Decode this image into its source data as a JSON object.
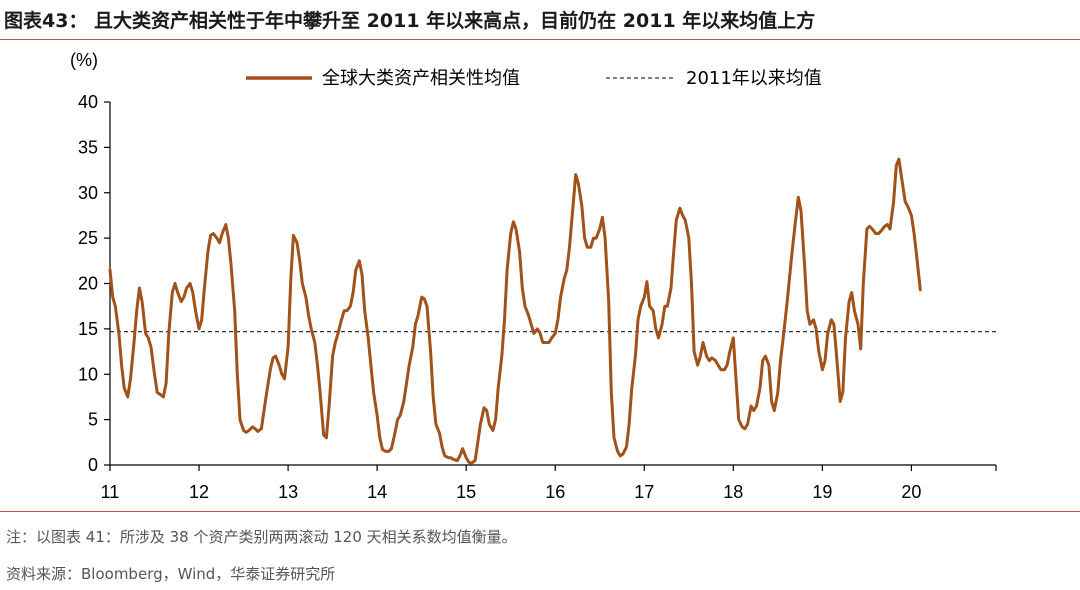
{
  "header": {
    "title": "图表43： 且大类资产相关性于年中攀升至 2011 年以来高点，目前仍在 2011 年以来均值上方"
  },
  "footer": {
    "note": "注：以图表 41：所涉及 38 个资产类别两两滚动 120 天相关系数均值衡量。",
    "source": "资料来源：Bloomberg，Wind，华泰证券研究所"
  },
  "colors": {
    "series_line": "#a0521a",
    "mean_line": "#333333",
    "rule": "#c0504d"
  },
  "chart_data": {
    "type": "line",
    "ylabel": "(%)",
    "ylim": [
      0,
      40
    ],
    "y_ticks": [
      0,
      5,
      10,
      15,
      20,
      25,
      30,
      35,
      40
    ],
    "xlim": [
      11,
      20.95
    ],
    "x_ticks": [
      11,
      12,
      13,
      14,
      15,
      16,
      17,
      18,
      19,
      20
    ],
    "x_tick_labels": [
      "11",
      "12",
      "13",
      "14",
      "15",
      "16",
      "17",
      "18",
      "19",
      "20"
    ],
    "grid": false,
    "legend_position": "top",
    "series": [
      {
        "name": "全球大类资产相关性均值",
        "style": "solid",
        "points": [
          [
            11.0,
            21.5
          ],
          [
            11.03,
            18.5
          ],
          [
            11.06,
            17.5
          ],
          [
            11.1,
            14.5
          ],
          [
            11.13,
            11.0
          ],
          [
            11.16,
            8.5
          ],
          [
            11.2,
            7.5
          ],
          [
            11.23,
            9.5
          ],
          [
            11.27,
            13.5
          ],
          [
            11.3,
            17.0
          ],
          [
            11.33,
            19.5
          ],
          [
            11.36,
            18.0
          ],
          [
            11.4,
            14.5
          ],
          [
            11.43,
            14.0
          ],
          [
            11.46,
            13.0
          ],
          [
            11.5,
            10.0
          ],
          [
            11.53,
            8.0
          ],
          [
            11.56,
            7.8
          ],
          [
            11.6,
            7.5
          ],
          [
            11.63,
            9.0
          ],
          [
            11.66,
            14.5
          ],
          [
            11.7,
            19.0
          ],
          [
            11.73,
            20.0
          ],
          [
            11.76,
            19.0
          ],
          [
            11.8,
            18.0
          ],
          [
            11.83,
            18.5
          ],
          [
            11.86,
            19.5
          ],
          [
            11.9,
            20.0
          ],
          [
            11.93,
            19.0
          ],
          [
            11.96,
            17.0
          ],
          [
            12.0,
            15.0
          ],
          [
            12.03,
            16.0
          ],
          [
            12.06,
            19.5
          ],
          [
            12.1,
            23.5
          ],
          [
            12.13,
            25.3
          ],
          [
            12.16,
            25.5
          ],
          [
            12.2,
            25.0
          ],
          [
            12.23,
            24.5
          ],
          [
            12.26,
            25.5
          ],
          [
            12.3,
            26.5
          ],
          [
            12.33,
            25.0
          ],
          [
            12.36,
            22.0
          ],
          [
            12.4,
            17.0
          ],
          [
            12.43,
            10.0
          ],
          [
            12.46,
            5.0
          ],
          [
            12.5,
            3.8
          ],
          [
            12.53,
            3.6
          ],
          [
            12.56,
            3.8
          ],
          [
            12.6,
            4.2
          ],
          [
            12.63,
            4.0
          ],
          [
            12.66,
            3.7
          ],
          [
            12.7,
            4.0
          ],
          [
            12.73,
            6.0
          ],
          [
            12.76,
            8.0
          ],
          [
            12.8,
            10.5
          ],
          [
            12.83,
            11.8
          ],
          [
            12.86,
            12.0
          ],
          [
            12.9,
            11.0
          ],
          [
            12.93,
            10.0
          ],
          [
            12.96,
            9.5
          ],
          [
            13.0,
            13.0
          ],
          [
            13.03,
            20.5
          ],
          [
            13.06,
            25.3
          ],
          [
            13.1,
            24.5
          ],
          [
            13.13,
            22.5
          ],
          [
            13.16,
            20.0
          ],
          [
            13.2,
            18.5
          ],
          [
            13.23,
            16.5
          ],
          [
            13.26,
            15.0
          ],
          [
            13.3,
            13.5
          ],
          [
            13.33,
            11.0
          ],
          [
            13.36,
            8.0
          ],
          [
            13.4,
            3.3
          ],
          [
            13.43,
            3.0
          ],
          [
            13.46,
            6.5
          ],
          [
            13.5,
            12.0
          ],
          [
            13.53,
            13.5
          ],
          [
            13.56,
            14.5
          ],
          [
            13.6,
            16.0
          ],
          [
            13.63,
            17.0
          ],
          [
            13.66,
            17.0
          ],
          [
            13.7,
            17.5
          ],
          [
            13.73,
            19.0
          ],
          [
            13.76,
            21.5
          ],
          [
            13.8,
            22.5
          ],
          [
            13.83,
            21.0
          ],
          [
            13.86,
            17.0
          ],
          [
            13.9,
            14.0
          ],
          [
            13.93,
            11.0
          ],
          [
            13.96,
            8.0
          ],
          [
            14.0,
            5.5
          ],
          [
            14.03,
            3.0
          ],
          [
            14.06,
            1.7
          ],
          [
            14.1,
            1.5
          ],
          [
            14.13,
            1.5
          ],
          [
            14.16,
            1.8
          ],
          [
            14.2,
            3.5
          ],
          [
            14.23,
            5.0
          ],
          [
            14.26,
            5.5
          ],
          [
            14.3,
            7.0
          ],
          [
            14.33,
            9.0
          ],
          [
            14.36,
            11.0
          ],
          [
            14.4,
            13.0
          ],
          [
            14.43,
            15.5
          ],
          [
            14.46,
            16.5
          ],
          [
            14.5,
            18.5
          ],
          [
            14.53,
            18.3
          ],
          [
            14.56,
            17.5
          ],
          [
            14.6,
            12.5
          ],
          [
            14.63,
            7.5
          ],
          [
            14.66,
            4.5
          ],
          [
            14.7,
            3.5
          ],
          [
            14.73,
            2.0
          ],
          [
            14.76,
            1.0
          ],
          [
            14.8,
            0.8
          ],
          [
            14.83,
            0.8
          ],
          [
            14.86,
            0.6
          ],
          [
            14.9,
            0.5
          ],
          [
            14.93,
            1.0
          ],
          [
            14.96,
            1.8
          ],
          [
            15.0,
            0.8
          ],
          [
            15.03,
            0.3
          ],
          [
            15.06,
            0.2
          ],
          [
            15.1,
            0.5
          ],
          [
            15.13,
            2.5
          ],
          [
            15.16,
            4.5
          ],
          [
            15.2,
            6.3
          ],
          [
            15.23,
            6.0
          ],
          [
            15.26,
            4.5
          ],
          [
            15.3,
            3.8
          ],
          [
            15.33,
            5.0
          ],
          [
            15.36,
            8.5
          ],
          [
            15.4,
            12.0
          ],
          [
            15.43,
            16.0
          ],
          [
            15.46,
            21.5
          ],
          [
            15.5,
            25.5
          ],
          [
            15.53,
            26.8
          ],
          [
            15.56,
            26.0
          ],
          [
            15.6,
            23.5
          ],
          [
            15.63,
            19.5
          ],
          [
            15.66,
            17.5
          ],
          [
            15.7,
            16.5
          ],
          [
            15.73,
            15.5
          ],
          [
            15.76,
            14.5
          ],
          [
            15.8,
            15.0
          ],
          [
            15.83,
            14.5
          ],
          [
            15.86,
            13.5
          ],
          [
            15.9,
            13.5
          ],
          [
            15.93,
            13.5
          ],
          [
            15.96,
            14.0
          ],
          [
            16.0,
            14.5
          ],
          [
            16.03,
            16.0
          ],
          [
            16.06,
            18.5
          ],
          [
            16.1,
            20.5
          ],
          [
            16.13,
            21.5
          ],
          [
            16.16,
            24.0
          ],
          [
            16.2,
            28.5
          ],
          [
            16.23,
            32.0
          ],
          [
            16.26,
            31.0
          ],
          [
            16.3,
            28.5
          ],
          [
            16.33,
            25.0
          ],
          [
            16.36,
            24.0
          ],
          [
            16.4,
            24.0
          ],
          [
            16.43,
            25.0
          ],
          [
            16.46,
            25.0
          ],
          [
            16.5,
            26.0
          ],
          [
            16.53,
            27.3
          ],
          [
            16.56,
            25.0
          ],
          [
            16.6,
            18.0
          ],
          [
            16.63,
            8.0
          ],
          [
            16.66,
            3.0
          ],
          [
            16.7,
            1.5
          ],
          [
            16.73,
            1.0
          ],
          [
            16.76,
            1.2
          ],
          [
            16.8,
            2.0
          ],
          [
            16.83,
            4.5
          ],
          [
            16.86,
            8.5
          ],
          [
            16.9,
            12.0
          ],
          [
            16.93,
            16.0
          ],
          [
            16.96,
            17.5
          ],
          [
            17.0,
            18.5
          ],
          [
            17.03,
            20.2
          ],
          [
            17.06,
            17.5
          ],
          [
            17.1,
            17.0
          ],
          [
            17.13,
            15.0
          ],
          [
            17.16,
            14.0
          ],
          [
            17.2,
            15.5
          ],
          [
            17.23,
            17.5
          ],
          [
            17.26,
            17.5
          ],
          [
            17.3,
            19.5
          ],
          [
            17.33,
            23.5
          ],
          [
            17.36,
            27.0
          ],
          [
            17.4,
            28.3
          ],
          [
            17.43,
            27.5
          ],
          [
            17.46,
            27.0
          ],
          [
            17.5,
            25.0
          ],
          [
            17.53,
            20.0
          ],
          [
            17.56,
            12.5
          ],
          [
            17.6,
            11.0
          ],
          [
            17.63,
            12.0
          ],
          [
            17.66,
            13.5
          ],
          [
            17.7,
            12.0
          ],
          [
            17.73,
            11.5
          ],
          [
            17.76,
            11.8
          ],
          [
            17.8,
            11.5
          ],
          [
            17.83,
            11.0
          ],
          [
            17.86,
            10.5
          ],
          [
            17.9,
            10.5
          ],
          [
            17.93,
            11.0
          ],
          [
            17.96,
            12.5
          ],
          [
            18.0,
            14.0
          ],
          [
            18.03,
            9.5
          ],
          [
            18.06,
            5.0
          ],
          [
            18.1,
            4.2
          ],
          [
            18.13,
            4.0
          ],
          [
            18.16,
            4.5
          ],
          [
            18.2,
            6.5
          ],
          [
            18.23,
            6.0
          ],
          [
            18.26,
            6.5
          ],
          [
            18.3,
            8.5
          ],
          [
            18.33,
            11.5
          ],
          [
            18.36,
            12.0
          ],
          [
            18.4,
            11.0
          ],
          [
            18.43,
            7.0
          ],
          [
            18.46,
            6.0
          ],
          [
            18.5,
            8.0
          ],
          [
            18.53,
            11.5
          ],
          [
            18.56,
            14.0
          ],
          [
            18.6,
            17.5
          ],
          [
            18.63,
            20.5
          ],
          [
            18.66,
            23.5
          ],
          [
            18.7,
            27.0
          ],
          [
            18.73,
            29.5
          ],
          [
            18.76,
            28.0
          ],
          [
            18.8,
            22.0
          ],
          [
            18.83,
            17.0
          ],
          [
            18.86,
            15.5
          ],
          [
            18.9,
            16.0
          ],
          [
            18.93,
            15.0
          ],
          [
            18.96,
            12.5
          ],
          [
            19.0,
            10.5
          ],
          [
            19.03,
            11.5
          ],
          [
            19.06,
            14.5
          ],
          [
            19.1,
            16.0
          ],
          [
            19.13,
            15.5
          ],
          [
            19.16,
            12.0
          ],
          [
            19.2,
            7.0
          ],
          [
            19.23,
            8.0
          ],
          [
            19.26,
            14.0
          ],
          [
            19.3,
            18.0
          ],
          [
            19.33,
            19.0
          ],
          [
            19.36,
            17.0
          ],
          [
            19.4,
            15.5
          ],
          [
            19.43,
            12.8
          ],
          [
            19.46,
            20.0
          ],
          [
            19.5,
            26.0
          ],
          [
            19.53,
            26.3
          ],
          [
            19.56,
            26.0
          ],
          [
            19.6,
            25.5
          ],
          [
            19.63,
            25.5
          ],
          [
            19.66,
            25.8
          ],
          [
            19.7,
            26.3
          ],
          [
            19.73,
            26.5
          ],
          [
            19.76,
            26.0
          ],
          [
            19.8,
            29.0
          ],
          [
            19.83,
            33.0
          ],
          [
            19.86,
            33.7
          ],
          [
            19.9,
            31.0
          ],
          [
            19.93,
            29.0
          ],
          [
            19.96,
            28.5
          ],
          [
            20.0,
            27.5
          ],
          [
            20.03,
            25.5
          ],
          [
            20.06,
            23.0
          ],
          [
            20.1,
            19.3
          ]
        ]
      },
      {
        "name": "2011年以来均值",
        "style": "dashed",
        "value": 14.7
      }
    ]
  }
}
